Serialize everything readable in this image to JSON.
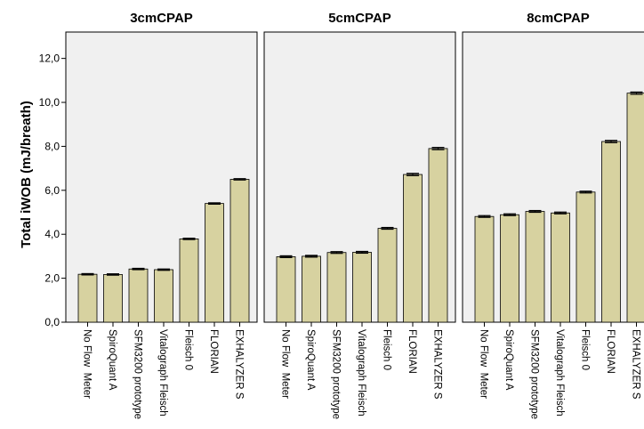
{
  "chart_data": {
    "type": "bar",
    "ylabel": "Total iWOB (mJ/breath)",
    "ylim": [
      0,
      13.2
    ],
    "yticks": [
      "0,0",
      "2,0",
      "4,0",
      "6,0",
      "8,0",
      "10,0",
      "12,0"
    ],
    "categories": [
      "No Flow  Meter",
      "SpiroQuant A",
      "SFM3200 prototype",
      "Vitalograph Fleisch",
      "Fleisch 0",
      "FLORIAN",
      "EXHALYZER S"
    ],
    "bar_color": "#d7d2a0",
    "panel_bg": "#f0f0f0",
    "grid": false,
    "error_bars": true,
    "panels": [
      {
        "title": "3cmCPAP",
        "values": [
          2.18,
          2.17,
          2.42,
          2.39,
          3.79,
          5.4,
          6.5
        ],
        "errors": [
          0.03,
          0.03,
          0.03,
          0.03,
          0.03,
          0.03,
          0.03
        ]
      },
      {
        "title": "5cmCPAP",
        "values": [
          2.98,
          3.0,
          3.17,
          3.18,
          4.27,
          6.72,
          7.9
        ],
        "errors": [
          0.04,
          0.04,
          0.04,
          0.04,
          0.04,
          0.05,
          0.05
        ]
      },
      {
        "title": "8cmCPAP",
        "values": [
          4.81,
          4.89,
          5.04,
          4.97,
          5.92,
          8.22,
          10.42
        ],
        "errors": [
          0.04,
          0.04,
          0.04,
          0.04,
          0.04,
          0.05,
          0.05
        ]
      }
    ]
  }
}
